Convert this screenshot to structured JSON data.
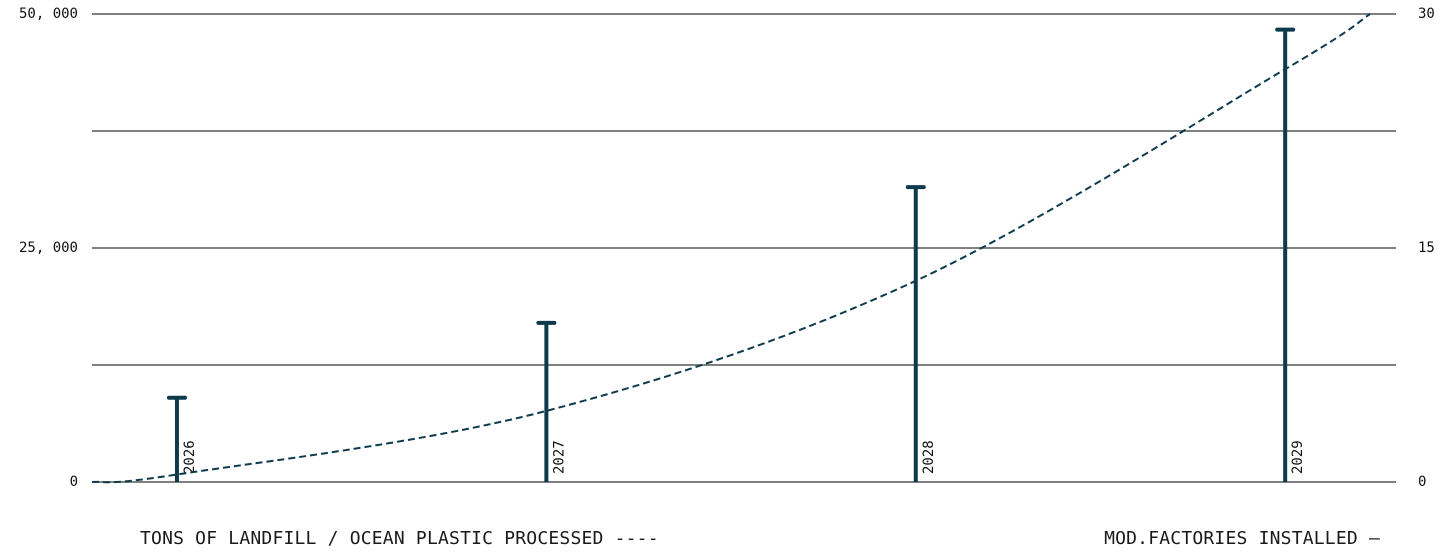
{
  "chart_data": {
    "type": "bar",
    "categories": [
      "2026",
      "2027",
      "2028",
      "2029"
    ],
    "series": [
      {
        "name": "MOD.FACTORIES INSTALLED",
        "axis": "right",
        "style": "bar-with-cap",
        "values": [
          5.4,
          10.2,
          18.9,
          29.0
        ]
      },
      {
        "name": "TONS OF LANDFILL / OCEAN PLASTIC PROCESSED",
        "axis": "left",
        "style": "dashed-curve",
        "curve": {
          "x": [
            2025.77,
            2026,
            2027,
            2028,
            2029,
            2029.23
          ],
          "y": [
            0,
            800,
            7600,
            21500,
            44100,
            50000
          ]
        }
      }
    ],
    "y_left": {
      "min": 0,
      "max": 50000,
      "ticks": [
        0,
        25000,
        50000
      ],
      "tick_labels": [
        "0",
        "25, 000",
        "50, 000"
      ]
    },
    "y_right": {
      "min": 0,
      "max": 30,
      "ticks": [
        0,
        15,
        30
      ],
      "tick_labels": [
        "0",
        "15",
        "30"
      ]
    },
    "x_range": [
      2025.77,
      2029.3
    ],
    "gridlines": [
      0,
      12500,
      25000,
      37500,
      50000
    ],
    "grid": true,
    "legend_left_text": "TONS OF LANDFILL / OCEAN PLASTIC PROCESSED ----",
    "legend_right_text": "MOD.FACTORIES INSTALLED —"
  },
  "colors": {
    "series": "#0d3b4c",
    "grid": "#808080",
    "text": "#111111"
  }
}
